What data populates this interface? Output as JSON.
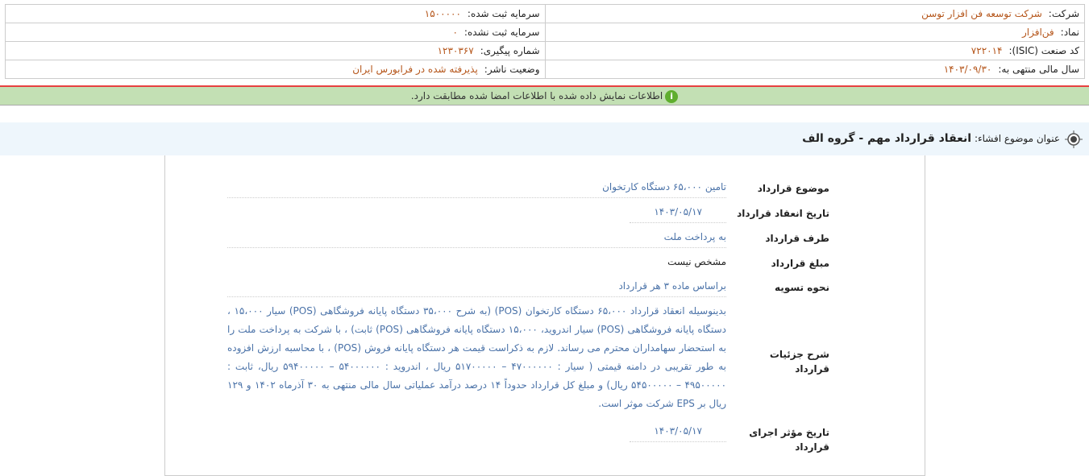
{
  "info": {
    "company_label": "شرکت:",
    "company": "شرکت توسعه فن افزار توسن",
    "capital_label": "سرمایه ثبت شده:",
    "capital": "۱۵۰۰۰۰۰",
    "symbol_label": "نماد:",
    "symbol": "فن‌افزار",
    "unreg_capital_label": "سرمایه ثبت نشده:",
    "unreg_capital": "۰",
    "isic_label": "کد صنعت (ISIC):",
    "isic": "۷۲۲۰۱۴",
    "tracking_label": "شماره پیگیری:",
    "tracking": "۱۲۳۰۳۶۷",
    "fiscal_label": "سال مالی منتهی به:",
    "fiscal": "۱۴۰۳/۰۹/۳۰",
    "status_label": "وضعیت ناشر:",
    "status": "پذیرفته شده در فرابورس ایران"
  },
  "notice": "اطلاعات نمایش داده شده با اطلاعات امضا شده مطابقت دارد.",
  "subject_label": "عنوان موضوع افشاء:",
  "subject": "انعقاد قرارداد مهم - گروه الف",
  "fields": [
    {
      "label": "موضوع قرارداد",
      "value": "تامین ۶۵،۰۰۰ دستگاه کارتخوان"
    },
    {
      "label": "تاریخ انعقاد قرارداد",
      "value": "۱۴۰۳/۰۵/۱۷"
    },
    {
      "label": "طرف قرارداد",
      "value": "به پرداخت ملت"
    },
    {
      "label": "مبلغ قرارداد",
      "value": "مشخص نیست"
    },
    {
      "label": "نحوه تسویه",
      "value": "براساس ماده ۳ هر قرارداد"
    },
    {
      "label": "شرح جزئیات قرارداد",
      "value": "بدینوسیله انعقاد قرارداد ۶۵،۰۰۰ دستگاه کارتخوان (POS) (به شرح ۳۵،۰۰۰ دستگاه پایانه فروشگاهی (POS) سیار ۱۵،۰۰۰ ، دستگاه پایانه فروشگاهی (POS) سیار اندروید، ۱۵،۰۰۰ دستگاه پایانه فروشگاهی (POS) ثابت) ، با شرکت به پرداخت ملت را به استحضار سهامداران محترم می رساند. لازم به ذکراست قیمت هر دستگاه پایانه فروش (POS) ، با محاسبه ارزش افزوده به طور تقریبی در دامنه قیمتی ( سیار : ۴۷۰۰۰۰۰۰ – ۵۱۷۰۰۰۰۰ ریال ، اندروید : ۵۴۰۰۰۰۰۰ – ۵۹۴۰۰۰۰۰ ریال، ثابت : ۴۹۵۰۰۰۰۰ – ۵۴۵۰۰۰۰۰ ریال) و مبلغ کل قرارداد حدوداً ۱۴ درصد درآمد عملیاتی سال مالی منتهی به ۳۰ آذرماه ۱۴۰۲ و ۱۲۹ ریال بر EPS شرکت موثر است."
    },
    {
      "label": "تاریخ مؤثر اجرای قرارداد",
      "value": "۱۴۰۳/۰۵/۱۷"
    }
  ],
  "colors": {
    "value_orange": "#b5561b",
    "value_blue": "#4a72a8",
    "notice_bg": "#c3e0b4",
    "band_bg": "#eef6fc",
    "red_line": "#e84040"
  }
}
